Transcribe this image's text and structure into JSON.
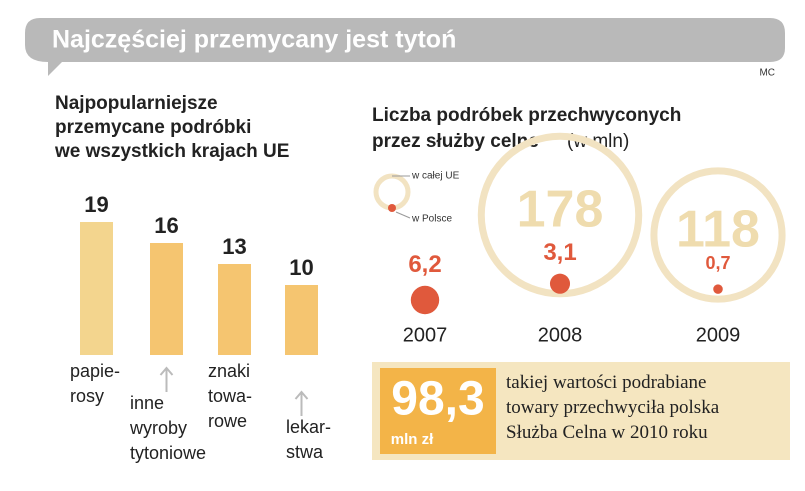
{
  "header": {
    "title": "Najczęściej przemycany jest tytoń",
    "credit": "MC"
  },
  "chart_data": [
    {
      "type": "bar",
      "title": "Najpopularniejsze\nprzemycane podróbki\nwe wszystkich krajach UE",
      "categories": [
        "papie-\nrosy",
        "inne\nwyroby\ntytoniowe",
        "znaki\ntowa-\nrowe",
        "lekar-\nstwa"
      ],
      "values": [
        19,
        16,
        13,
        10
      ],
      "colors": [
        "#f3d58e",
        "#f5c570",
        "#f5c570",
        "#f5c570"
      ]
    },
    {
      "type": "bubble",
      "title": "Liczba podróbek przechwyconych\nprzez służby celne",
      "subtitle": "(w mln)",
      "categories": [
        "2007",
        "2008",
        "2009"
      ],
      "series": [
        {
          "name": "w całej UE",
          "color": "#f2e3c2",
          "values": [
            null,
            178,
            118
          ]
        },
        {
          "name": "w Polsce",
          "color": "#e0593c",
          "values": [
            6.2,
            3.1,
            0.7
          ],
          "value_labels": [
            "6,2",
            "3,1",
            "0,7"
          ]
        }
      ]
    }
  ],
  "callout": {
    "value": "98,3",
    "unit": "mln zł",
    "text": "takiej wartości podrabiane\ntowary przechwyciła polska\nSłużba Celna w 2010 roku"
  }
}
